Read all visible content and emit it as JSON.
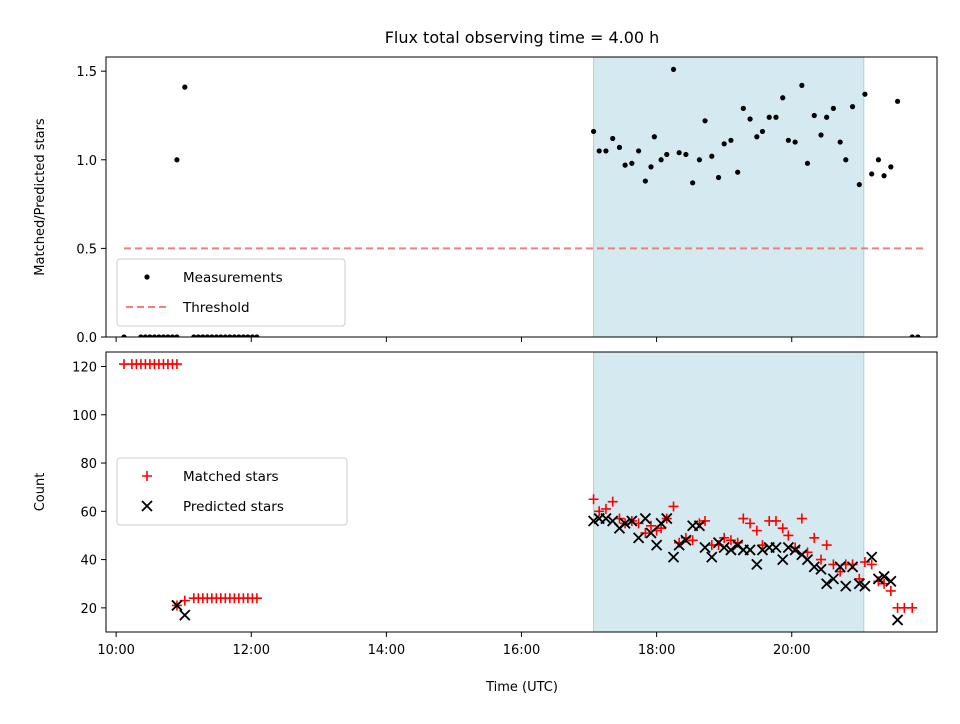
{
  "chart_data": {
    "type": "scatter",
    "title": "Flux total observing time = 4.00 h",
    "xlabel": "Time (UTC)",
    "x_ticks": [
      "10:00",
      "12:00",
      "14:00",
      "16:00",
      "18:00",
      "20:00"
    ],
    "xlim": [
      "09:51",
      "22:09"
    ],
    "shaded_interval": {
      "from": "17:04",
      "to": "21:04",
      "color": "#d4eaf0"
    },
    "panels": [
      {
        "id": "ratio",
        "ylabel": "Matched/Predicted stars",
        "ylim": [
          0,
          1.58
        ],
        "y_ticks": [
          "0.0",
          "0.5",
          "1.0",
          "1.5"
        ],
        "legend_position": "lower-left",
        "series": [
          {
            "name": "Measurements",
            "marker": "dot",
            "color": "#000000",
            "points": [
              [
                "10:07",
                0.0
              ],
              [
                "10:22",
                0.0
              ],
              [
                "10:26",
                0.0
              ],
              [
                "10:30",
                0.0
              ],
              [
                "10:34",
                0.0
              ],
              [
                "10:38",
                0.0
              ],
              [
                "10:42",
                0.0
              ],
              [
                "10:46",
                0.0
              ],
              [
                "10:50",
                0.0
              ],
              [
                "10:54",
                0.0
              ],
              [
                "10:54",
                1.0
              ],
              [
                "11:01",
                1.41
              ],
              [
                "11:09",
                0.0
              ],
              [
                "11:13",
                0.0
              ],
              [
                "11:17",
                0.0
              ],
              [
                "11:21",
                0.0
              ],
              [
                "11:25",
                0.0
              ],
              [
                "11:29",
                0.0
              ],
              [
                "11:33",
                0.0
              ],
              [
                "11:37",
                0.0
              ],
              [
                "11:41",
                0.0
              ],
              [
                "11:45",
                0.0
              ],
              [
                "11:49",
                0.0
              ],
              [
                "11:53",
                0.0
              ],
              [
                "11:57",
                0.0
              ],
              [
                "12:01",
                0.0
              ],
              [
                "12:05",
                0.0
              ],
              [
                "17:04",
                1.16
              ],
              [
                "17:09",
                1.05
              ],
              [
                "17:15",
                1.05
              ],
              [
                "17:21",
                1.12
              ],
              [
                "17:27",
                1.07
              ],
              [
                "17:32",
                0.97
              ],
              [
                "17:38",
                0.98
              ],
              [
                "17:44",
                1.05
              ],
              [
                "17:50",
                0.88
              ],
              [
                "17:55",
                0.96
              ],
              [
                "17:58",
                1.13
              ],
              [
                "18:04",
                1.0
              ],
              [
                "18:09",
                1.03
              ],
              [
                "18:15",
                1.51
              ],
              [
                "18:20",
                1.04
              ],
              [
                "18:26",
                1.03
              ],
              [
                "18:32",
                0.87
              ],
              [
                "18:38",
                1.0
              ],
              [
                "18:43",
                1.22
              ],
              [
                "18:49",
                1.02
              ],
              [
                "18:55",
                0.9
              ],
              [
                "19:00",
                1.09
              ],
              [
                "19:06",
                1.11
              ],
              [
                "19:12",
                0.93
              ],
              [
                "19:17",
                1.29
              ],
              [
                "19:23",
                1.23
              ],
              [
                "19:29",
                1.13
              ],
              [
                "19:34",
                1.16
              ],
              [
                "19:40",
                1.24
              ],
              [
                "19:46",
                1.24
              ],
              [
                "19:52",
                1.35
              ],
              [
                "19:57",
                1.11
              ],
              [
                "20:03",
                1.1
              ],
              [
                "20:09",
                1.42
              ],
              [
                "20:14",
                0.98
              ],
              [
                "20:20",
                1.25
              ],
              [
                "20:26",
                1.14
              ],
              [
                "20:31",
                1.24
              ],
              [
                "20:37",
                1.29
              ],
              [
                "20:43",
                1.1
              ],
              [
                "20:48",
                1.0
              ],
              [
                "20:54",
                1.3
              ],
              [
                "21:00",
                0.86
              ],
              [
                "21:05",
                1.37
              ],
              [
                "21:11",
                0.92
              ],
              [
                "21:17",
                1.0
              ],
              [
                "21:22",
                0.91
              ],
              [
                "21:28",
                0.96
              ],
              [
                "21:34",
                1.33
              ],
              [
                "21:47",
                0.0
              ],
              [
                "21:52",
                0.0
              ]
            ]
          },
          {
            "name": "Threshold",
            "marker": "dashed-line",
            "color": "#f08080",
            "points": [
              [
                "10:07",
                0.5
              ],
              [
                "22:00",
                0.5
              ]
            ]
          }
        ]
      },
      {
        "id": "counts",
        "ylabel": "Count",
        "ylim": [
          10,
          126
        ],
        "y_ticks": [
          "20",
          "40",
          "60",
          "80",
          "100",
          "120"
        ],
        "legend_position": "center-left",
        "series": [
          {
            "name": "Matched stars",
            "marker": "plus",
            "color": "#ff0000",
            "points": [
              [
                "10:07",
                121
              ],
              [
                "10:14",
                121
              ],
              [
                "10:18",
                121
              ],
              [
                "10:22",
                121
              ],
              [
                "10:26",
                121
              ],
              [
                "10:30",
                121
              ],
              [
                "10:34",
                121
              ],
              [
                "10:38",
                121
              ],
              [
                "10:42",
                121
              ],
              [
                "10:46",
                121
              ],
              [
                "10:50",
                121
              ],
              [
                "10:54",
                121
              ],
              [
                "10:54",
                21
              ],
              [
                "11:01",
                23
              ],
              [
                "11:09",
                24
              ],
              [
                "11:13",
                24
              ],
              [
                "11:17",
                24
              ],
              [
                "11:21",
                24
              ],
              [
                "11:25",
                24
              ],
              [
                "11:29",
                24
              ],
              [
                "11:33",
                24
              ],
              [
                "11:37",
                24
              ],
              [
                "11:41",
                24
              ],
              [
                "11:45",
                24
              ],
              [
                "11:49",
                24
              ],
              [
                "11:53",
                24
              ],
              [
                "11:57",
                24
              ],
              [
                "12:01",
                24
              ],
              [
                "12:05",
                24
              ],
              [
                "17:04",
                65
              ],
              [
                "17:09",
                60
              ],
              [
                "17:15",
                61
              ],
              [
                "17:21",
                64
              ],
              [
                "17:27",
                57
              ],
              [
                "17:32",
                55
              ],
              [
                "17:38",
                56
              ],
              [
                "17:44",
                55
              ],
              [
                "17:50",
                51
              ],
              [
                "17:55",
                54
              ],
              [
                "18:00",
                52
              ],
              [
                "18:04",
                53
              ],
              [
                "18:09",
                57
              ],
              [
                "18:15",
                62
              ],
              [
                "18:20",
                47
              ],
              [
                "18:26",
                49
              ],
              [
                "18:32",
                48
              ],
              [
                "18:38",
                55
              ],
              [
                "18:43",
                56
              ],
              [
                "18:49",
                46
              ],
              [
                "18:55",
                46
              ],
              [
                "19:00",
                49
              ],
              [
                "19:06",
                48
              ],
              [
                "19:12",
                47
              ],
              [
                "19:17",
                57
              ],
              [
                "19:23",
                55
              ],
              [
                "19:29",
                52
              ],
              [
                "19:34",
                46
              ],
              [
                "19:40",
                56
              ],
              [
                "19:46",
                56
              ],
              [
                "19:52",
                53
              ],
              [
                "19:57",
                50
              ],
              [
                "20:03",
                45
              ],
              [
                "20:09",
                57
              ],
              [
                "20:14",
                43
              ],
              [
                "20:20",
                49
              ],
              [
                "20:26",
                40
              ],
              [
                "20:31",
                46
              ],
              [
                "20:37",
                38
              ],
              [
                "20:43",
                35
              ],
              [
                "20:48",
                38
              ],
              [
                "20:54",
                38
              ],
              [
                "21:00",
                32
              ],
              [
                "21:05",
                39
              ],
              [
                "21:11",
                38
              ],
              [
                "21:17",
                31
              ],
              [
                "21:22",
                30
              ],
              [
                "21:28",
                27
              ],
              [
                "21:34",
                20
              ],
              [
                "21:40",
                20
              ],
              [
                "21:47",
                20
              ]
            ]
          },
          {
            "name": "Predicted stars",
            "marker": "x",
            "color": "#000000",
            "points": [
              [
                "10:54",
                21
              ],
              [
                "11:01",
                17
              ],
              [
                "17:04",
                56
              ],
              [
                "17:09",
                57
              ],
              [
                "17:15",
                57
              ],
              [
                "17:21",
                56
              ],
              [
                "17:27",
                53
              ],
              [
                "17:32",
                55
              ],
              [
                "17:38",
                56
              ],
              [
                "17:44",
                49
              ],
              [
                "17:50",
                57
              ],
              [
                "17:55",
                51
              ],
              [
                "18:00",
                46
              ],
              [
                "18:04",
                55
              ],
              [
                "18:09",
                57
              ],
              [
                "18:15",
                41
              ],
              [
                "18:20",
                46
              ],
              [
                "18:26",
                48
              ],
              [
                "18:32",
                54
              ],
              [
                "18:38",
                54
              ],
              [
                "18:43",
                45
              ],
              [
                "18:49",
                41
              ],
              [
                "18:55",
                47
              ],
              [
                "19:00",
                45
              ],
              [
                "19:06",
                44
              ],
              [
                "19:12",
                46
              ],
              [
                "19:17",
                44
              ],
              [
                "19:23",
                44
              ],
              [
                "19:29",
                38
              ],
              [
                "19:34",
                44
              ],
              [
                "19:40",
                45
              ],
              [
                "19:46",
                45
              ],
              [
                "19:52",
                40
              ],
              [
                "19:57",
                45
              ],
              [
                "20:03",
                44
              ],
              [
                "20:09",
                42
              ],
              [
                "20:14",
                40
              ],
              [
                "20:20",
                37
              ],
              [
                "20:26",
                36
              ],
              [
                "20:31",
                30
              ],
              [
                "20:37",
                32
              ],
              [
                "20:43",
                37
              ],
              [
                "20:48",
                29
              ],
              [
                "20:54",
                37
              ],
              [
                "21:00",
                30
              ],
              [
                "21:05",
                29
              ],
              [
                "21:11",
                41
              ],
              [
                "21:17",
                32
              ],
              [
                "21:22",
                33
              ],
              [
                "21:28",
                31
              ],
              [
                "21:34",
                15
              ]
            ]
          }
        ]
      }
    ]
  }
}
